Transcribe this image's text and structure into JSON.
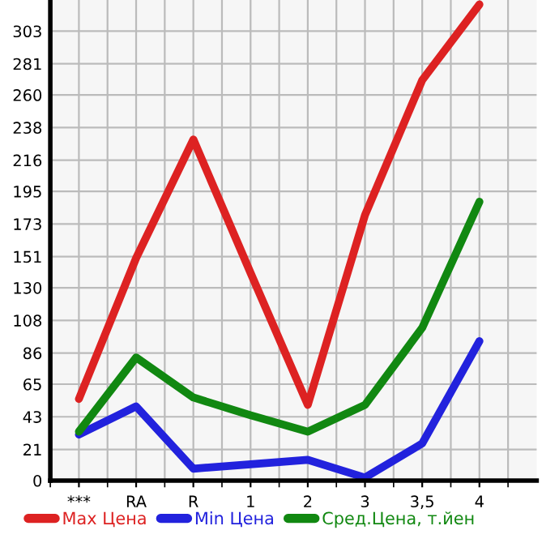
{
  "chart_data": {
    "type": "line",
    "categories": [
      "***",
      "RA",
      "R",
      "1",
      "2",
      "3",
      "3,5",
      "4"
    ],
    "series": [
      {
        "name": "Max Цена",
        "color": "#dd2222",
        "values": [
          55,
          150,
          230,
          140,
          51,
          179,
          270,
          321
        ]
      },
      {
        "name": "Min Цена",
        "color": "#2222dd",
        "values": [
          31,
          50,
          8,
          11,
          14,
          2,
          25,
          94
        ]
      },
      {
        "name": "Сред.Цена, т.йен",
        "color": "#118811",
        "values": [
          33,
          83,
          56,
          44,
          33,
          51,
          103,
          188
        ]
      }
    ],
    "ylim": [
      0,
      324
    ],
    "yticks": [
      0,
      21,
      43,
      65,
      86,
      108,
      130,
      151,
      173,
      195,
      216,
      238,
      260,
      281,
      303
    ],
    "grid": true,
    "legend": "bottom",
    "marker": "none",
    "line_style": "solid"
  }
}
